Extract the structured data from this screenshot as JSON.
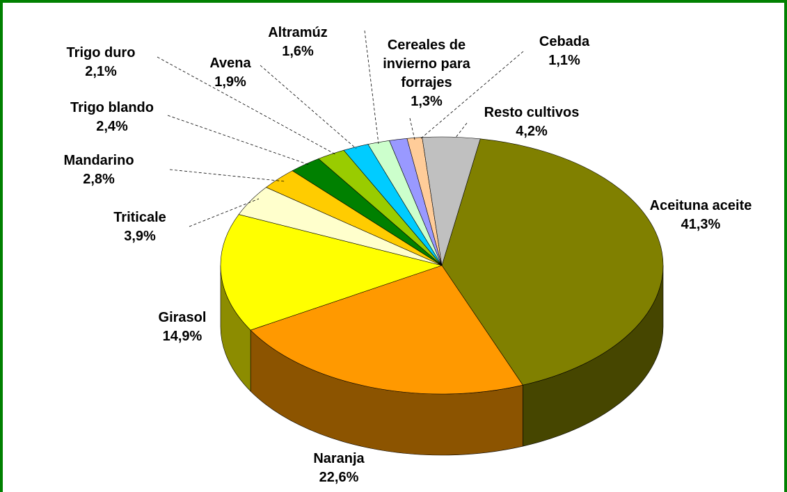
{
  "chart_data": {
    "type": "pie",
    "categories": [
      "Aceituna aceite",
      "Naranja",
      "Girasol",
      "Triticale",
      "Mandarino",
      "Trigo blando",
      "Trigo duro",
      "Avena",
      "Altramúz",
      "Cereales de invierno para forrajes",
      "Cebada",
      "Resto cultivos"
    ],
    "values": [
      41.3,
      22.6,
      14.9,
      3.9,
      2.8,
      2.4,
      2.1,
      1.9,
      1.6,
      1.3,
      1.1,
      4.2
    ],
    "value_labels": [
      "41,3%",
      "22,6%",
      "14,9%",
      "3,9%",
      "2,8%",
      "2,4%",
      "2,1%",
      "1,9%",
      "1,6%",
      "1,3%",
      "1,1%",
      "4,2%"
    ],
    "colors": [
      "#808000",
      "#ff9900",
      "#ffff00",
      "#ffffcc",
      "#ffcc00",
      "#008000",
      "#99cc00",
      "#00ccff",
      "#ccffcc",
      "#9999ff",
      "#ffcc99",
      "#c0c0c0"
    ],
    "three_d": true
  }
}
